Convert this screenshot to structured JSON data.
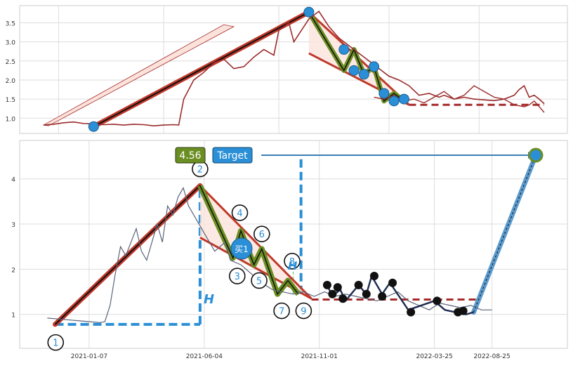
{
  "chart_data": [
    {
      "id": "top",
      "type": "line",
      "yticks": [
        1.0,
        1.5,
        2.0,
        2.5,
        3.0,
        3.5
      ],
      "ylim": [
        0.6,
        3.95
      ],
      "xlim": [
        0,
        1
      ],
      "grid": true,
      "price": [
        [
          0.0,
          0.82
        ],
        [
          0.02,
          0.84
        ],
        [
          0.04,
          0.88
        ],
        [
          0.06,
          0.9
        ],
        [
          0.08,
          0.86
        ],
        [
          0.1,
          0.85
        ],
        [
          0.12,
          0.83
        ],
        [
          0.14,
          0.84
        ],
        [
          0.16,
          0.82
        ],
        [
          0.18,
          0.84
        ],
        [
          0.2,
          0.83
        ],
        [
          0.22,
          0.8
        ],
        [
          0.24,
          0.82
        ],
        [
          0.26,
          0.83
        ],
        [
          0.27,
          0.82
        ],
        [
          0.28,
          1.5
        ],
        [
          0.3,
          2.0
        ],
        [
          0.32,
          2.2
        ],
        [
          0.34,
          2.45
        ],
        [
          0.36,
          2.55
        ],
        [
          0.38,
          2.3
        ],
        [
          0.4,
          2.35
        ],
        [
          0.42,
          2.6
        ],
        [
          0.44,
          2.8
        ],
        [
          0.46,
          2.65
        ],
        [
          0.47,
          3.3
        ],
        [
          0.49,
          3.5
        ],
        [
          0.5,
          3.0
        ],
        [
          0.51,
          3.2
        ],
        [
          0.53,
          3.6
        ],
        [
          0.55,
          3.8
        ],
        [
          0.57,
          3.4
        ],
        [
          0.59,
          3.1
        ],
        [
          0.61,
          2.9
        ],
        [
          0.63,
          2.7
        ],
        [
          0.65,
          2.5
        ],
        [
          0.67,
          2.3
        ],
        [
          0.69,
          2.1
        ],
        [
          0.71,
          2.0
        ],
        [
          0.73,
          1.85
        ],
        [
          0.75,
          1.6
        ],
        [
          0.77,
          1.65
        ],
        [
          0.79,
          1.55
        ],
        [
          0.8,
          1.6
        ],
        [
          0.82,
          1.5
        ],
        [
          0.84,
          1.55
        ],
        [
          0.86,
          1.5
        ],
        [
          0.88,
          1.48
        ],
        [
          0.9,
          1.46
        ],
        [
          0.92,
          1.5
        ],
        [
          0.94,
          1.6
        ],
        [
          0.95,
          1.75
        ],
        [
          0.96,
          1.85
        ],
        [
          0.97,
          1.55
        ],
        [
          0.98,
          1.6
        ],
        [
          0.99,
          1.5
        ],
        [
          1.0,
          1.38
        ]
      ],
      "price2": [
        [
          0.66,
          1.55
        ],
        [
          0.68,
          1.5
        ],
        [
          0.7,
          1.6
        ],
        [
          0.72,
          1.45
        ],
        [
          0.74,
          1.5
        ],
        [
          0.76,
          1.4
        ],
        [
          0.78,
          1.55
        ],
        [
          0.8,
          1.7
        ],
        [
          0.82,
          1.5
        ],
        [
          0.84,
          1.6
        ],
        [
          0.86,
          1.85
        ],
        [
          0.88,
          1.7
        ],
        [
          0.9,
          1.55
        ],
        [
          0.92,
          1.5
        ],
        [
          0.94,
          1.35
        ],
        [
          0.96,
          1.3
        ],
        [
          0.97,
          1.35
        ],
        [
          0.98,
          1.45
        ],
        [
          0.99,
          1.3
        ],
        [
          1.0,
          1.15
        ]
      ],
      "pivots": [
        [
          0.1,
          0.78
        ],
        [
          0.53,
          3.78
        ],
        [
          0.6,
          2.8
        ],
        [
          0.62,
          2.25
        ],
        [
          0.64,
          2.15
        ],
        [
          0.66,
          2.35
        ],
        [
          0.68,
          1.65
        ],
        [
          0.7,
          1.45
        ],
        [
          0.72,
          1.5
        ]
      ]
    },
    {
      "id": "bottom",
      "type": "line",
      "yticks": [
        1,
        2,
        3,
        4
      ],
      "ylim": [
        0.25,
        4.85
      ],
      "xlim": [
        0,
        1
      ],
      "grid": true,
      "xtick_labels": [
        "2021-01-07",
        "2021-06-04",
        "2021-11-01",
        "2022-03-25",
        "2022-08-25"
      ],
      "xtick_positions": [
        0.11,
        0.33,
        0.55,
        0.77,
        0.88
      ],
      "price": [
        [
          0.03,
          0.92
        ],
        [
          0.05,
          0.9
        ],
        [
          0.07,
          0.88
        ],
        [
          0.09,
          0.86
        ],
        [
          0.11,
          0.84
        ],
        [
          0.13,
          0.82
        ],
        [
          0.14,
          0.84
        ],
        [
          0.15,
          1.2
        ],
        [
          0.16,
          1.9
        ],
        [
          0.17,
          2.5
        ],
        [
          0.18,
          2.3
        ],
        [
          0.19,
          2.6
        ],
        [
          0.2,
          2.9
        ],
        [
          0.21,
          2.4
        ],
        [
          0.22,
          2.2
        ],
        [
          0.23,
          2.6
        ],
        [
          0.24,
          3.0
        ],
        [
          0.25,
          2.6
        ],
        [
          0.26,
          3.4
        ],
        [
          0.27,
          3.2
        ],
        [
          0.28,
          3.6
        ],
        [
          0.29,
          3.8
        ],
        [
          0.3,
          3.4
        ],
        [
          0.32,
          3.0
        ],
        [
          0.33,
          2.8
        ],
        [
          0.35,
          2.4
        ],
        [
          0.37,
          2.6
        ],
        [
          0.38,
          2.2
        ],
        [
          0.4,
          2.1
        ],
        [
          0.42,
          1.9
        ],
        [
          0.44,
          1.7
        ],
        [
          0.46,
          1.55
        ],
        [
          0.48,
          1.5
        ],
        [
          0.5,
          1.45
        ],
        [
          0.52,
          1.5
        ],
        [
          0.54,
          1.4
        ],
        [
          0.56,
          1.5
        ],
        [
          0.58,
          1.4
        ],
        [
          0.6,
          1.45
        ],
        [
          0.62,
          1.4
        ],
        [
          0.64,
          1.35
        ],
        [
          0.66,
          1.3
        ],
        [
          0.68,
          1.4
        ],
        [
          0.7,
          1.5
        ],
        [
          0.72,
          1.3
        ],
        [
          0.74,
          1.2
        ],
        [
          0.76,
          1.1
        ],
        [
          0.78,
          1.25
        ],
        [
          0.8,
          1.2
        ],
        [
          0.82,
          1.15
        ],
        [
          0.84,
          1.2
        ],
        [
          0.86,
          1.1
        ],
        [
          0.88,
          1.1
        ]
      ],
      "zigzag": [
        [
          0.565,
          1.65
        ],
        [
          0.575,
          1.4
        ],
        [
          0.59,
          1.55
        ],
        [
          0.6,
          1.3
        ],
        [
          0.625,
          1.65
        ],
        [
          0.64,
          1.45
        ],
        [
          0.65,
          1.85
        ],
        [
          0.67,
          1.45
        ],
        [
          0.685,
          1.7
        ],
        [
          0.72,
          1.1
        ],
        [
          0.77,
          1.3
        ],
        [
          0.79,
          1.1
        ],
        [
          0.83,
          1.0
        ],
        [
          0.845,
          1.05
        ]
      ],
      "pivots": [
        [
          0.565,
          1.65
        ],
        [
          0.575,
          1.45
        ],
        [
          0.585,
          1.6
        ],
        [
          0.595,
          1.35
        ],
        [
          0.625,
          1.65
        ],
        [
          0.64,
          1.45
        ],
        [
          0.655,
          1.85
        ],
        [
          0.67,
          1.4
        ],
        [
          0.69,
          1.7
        ],
        [
          0.725,
          1.05
        ],
        [
          0.775,
          1.3
        ],
        [
          0.815,
          1.05
        ],
        [
          0.825,
          1.08
        ]
      ],
      "target": {
        "price_label": "4.56",
        "label": "Target",
        "value": 4.56
      },
      "buy_label": "买1",
      "h_label": "H",
      "wave_labels": [
        "1",
        "2",
        "3",
        "4",
        "5",
        "6",
        "7",
        "8",
        "9"
      ],
      "colors": {
        "price": "#1d2b4f",
        "trend": "#c0392b",
        "wave": "#6b8e23",
        "dashed_red": "#a52a2a",
        "blue": "#2a8fd6",
        "target_green": "#6b8e23",
        "pivot": "#111111"
      }
    }
  ]
}
